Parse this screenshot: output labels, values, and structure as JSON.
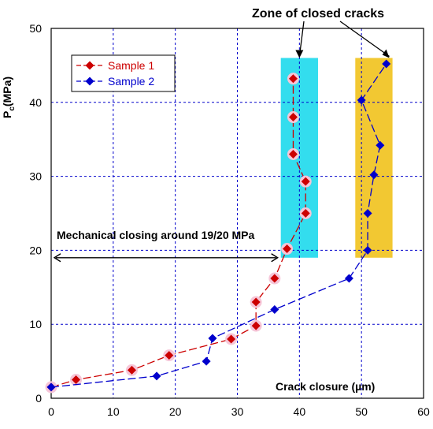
{
  "chart_data": {
    "type": "scatter",
    "xlabel": "Crack closure (µm)",
    "ylabel": "P",
    "ylabel_sub": "c",
    "ylabel_unit": "(MPa)",
    "xlim": [
      0,
      60
    ],
    "ylim": [
      0,
      50
    ],
    "x_ticks": [
      0,
      10,
      20,
      30,
      40,
      50,
      60
    ],
    "y_ticks": [
      0,
      10,
      20,
      30,
      40,
      50
    ],
    "grid": true,
    "legend_position": "top-left",
    "series": [
      {
        "name": "Sample 1",
        "color": "#cc0000",
        "marker": "diamond",
        "points": [
          [
            0,
            1.5
          ],
          [
            4,
            2.5
          ],
          [
            13,
            3.8
          ],
          [
            19,
            5.8
          ],
          [
            29,
            8
          ],
          [
            33,
            9.8
          ],
          [
            33,
            13
          ],
          [
            36,
            16.2
          ],
          [
            38,
            20.2
          ],
          [
            41,
            25
          ],
          [
            41,
            29.3
          ],
          [
            39,
            33
          ],
          [
            39,
            38
          ],
          [
            39,
            43.2
          ]
        ]
      },
      {
        "name": "Sample 2",
        "color": "#0000cc",
        "marker": "diamond",
        "points": [
          [
            0,
            1.5
          ],
          [
            17,
            3
          ],
          [
            25,
            5
          ],
          [
            26,
            8.1
          ],
          [
            36,
            12
          ],
          [
            48,
            16.2
          ],
          [
            51,
            20
          ],
          [
            51,
            25
          ],
          [
            52,
            30.2
          ],
          [
            53,
            34.2
          ],
          [
            50,
            40.3
          ],
          [
            54,
            45.2
          ]
        ]
      }
    ],
    "zones": [
      {
        "x": [
          37,
          43
        ],
        "y": [
          19,
          46
        ],
        "color": "#33ddee"
      },
      {
        "x": [
          49,
          55
        ],
        "y": [
          19,
          46
        ],
        "color": "#f2c832"
      }
    ],
    "annotations": {
      "zone_label": "Zone of closed cracks",
      "closing_label": "Mechanical closing around 19/20 MPa",
      "closing_x_range": [
        0,
        37
      ],
      "closing_y": 19
    }
  }
}
